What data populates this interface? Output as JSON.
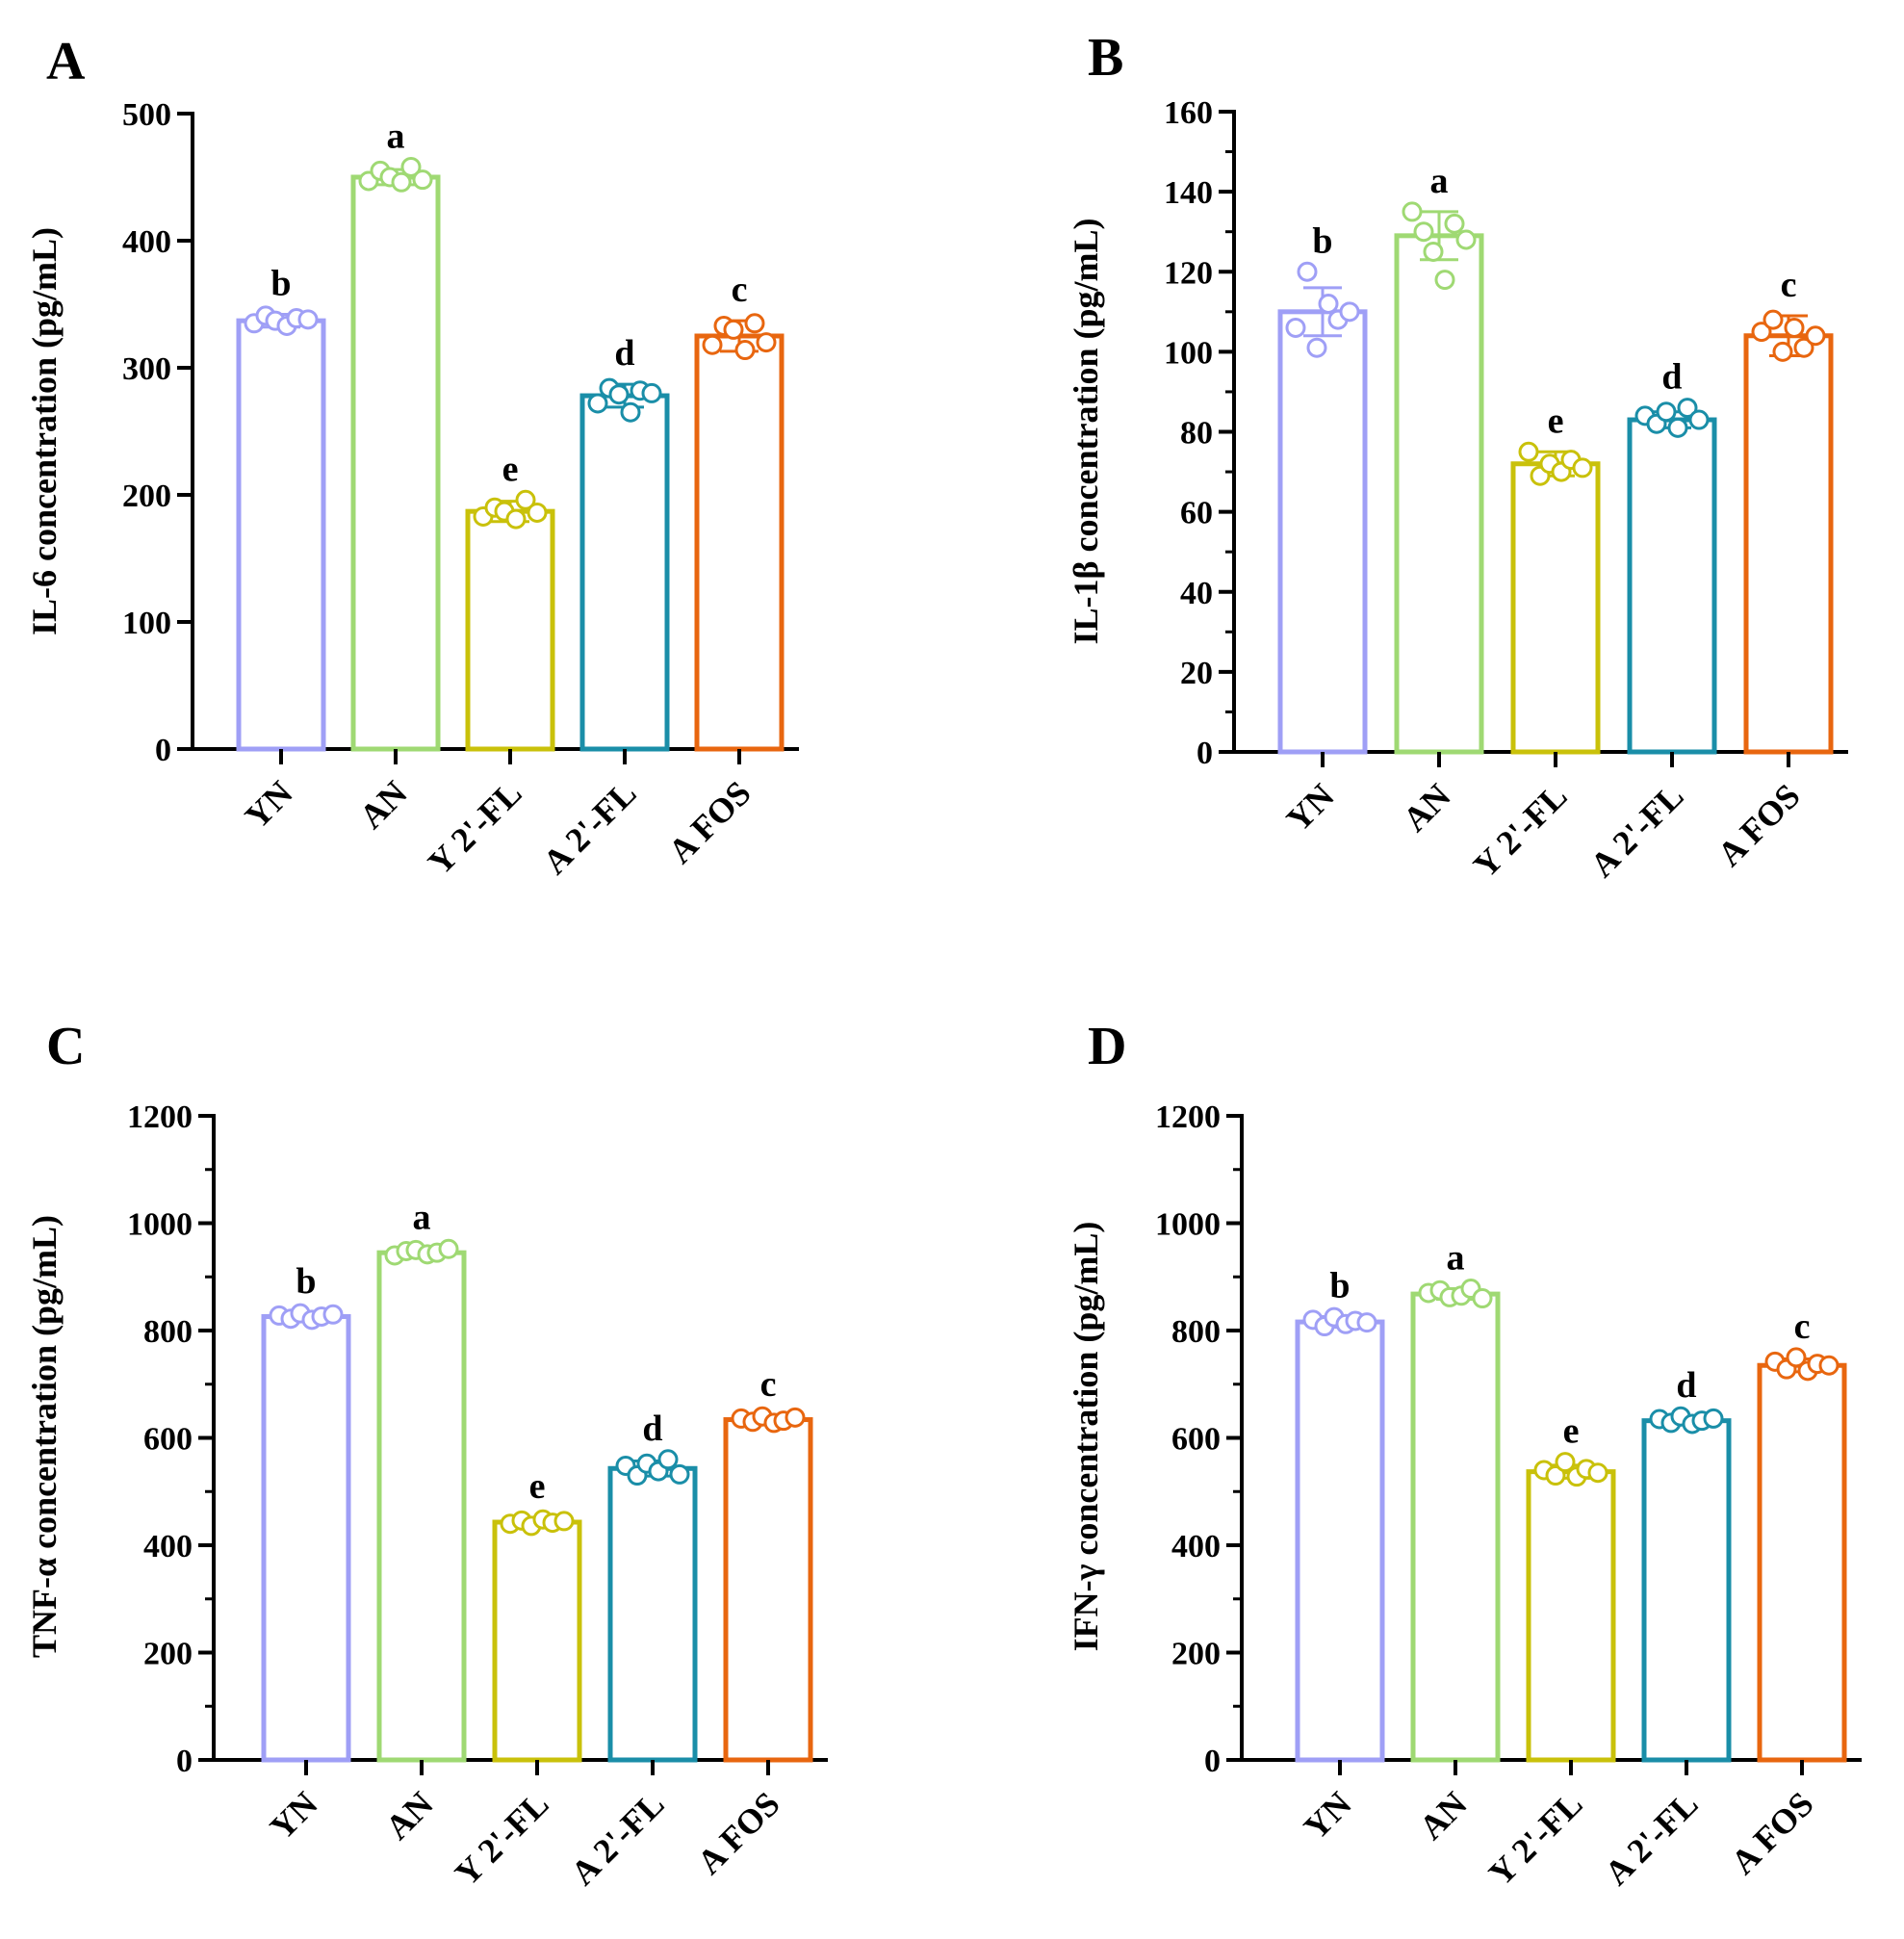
{
  "chart_data": [
    {
      "panel": "A",
      "type": "bar",
      "ylabel": "IL-6 concentration (pg/mL)",
      "ylim": [
        0,
        500
      ],
      "yticks": [
        0,
        100,
        200,
        300,
        400,
        500
      ],
      "ymajor_step": 100,
      "yminor_step": 100,
      "categories": [
        "YN",
        "AN",
        "Y 2'-FL",
        "A 2'-FL",
        "A FOS"
      ],
      "values": [
        337,
        450,
        187,
        278,
        325
      ],
      "errors": [
        5,
        6,
        8,
        9,
        12
      ],
      "letters": [
        "b",
        "a",
        "e",
        "d",
        "c"
      ],
      "points": [
        [
          335,
          341,
          337,
          333,
          339,
          338
        ],
        [
          447,
          455,
          450,
          446,
          458,
          448
        ],
        [
          183,
          190,
          187,
          181,
          196,
          186
        ],
        [
          272,
          284,
          279,
          265,
          282,
          280
        ],
        [
          318,
          333,
          330,
          314,
          335,
          320
        ]
      ]
    },
    {
      "panel": "B",
      "type": "bar",
      "ylabel": "IL-1β concentration (pg/mL)",
      "ylim": [
        0,
        160
      ],
      "yticks": [
        0,
        20,
        40,
        60,
        80,
        100,
        120,
        140,
        160
      ],
      "ymajor_step": 20,
      "yminor_step": 10,
      "categories": [
        "YN",
        "AN",
        "Y 2'-FL",
        "A 2'-FL",
        "A FOS"
      ],
      "values": [
        110,
        129,
        72,
        83,
        104
      ],
      "errors": [
        6,
        6,
        3,
        2,
        5
      ],
      "letters": [
        "b",
        "a",
        "e",
        "d",
        "c"
      ],
      "points": [
        [
          106,
          120,
          101,
          112,
          108,
          110
        ],
        [
          135,
          130,
          125,
          118,
          132,
          128
        ],
        [
          75,
          69,
          72,
          70,
          73,
          71
        ],
        [
          84,
          82,
          85,
          81,
          86,
          83
        ],
        [
          105,
          108,
          100,
          106,
          101,
          104
        ]
      ]
    },
    {
      "panel": "C",
      "type": "bar",
      "ylabel": "TNF-α concentration (pg/mL)",
      "ylim": [
        0,
        1200
      ],
      "yticks": [
        0,
        200,
        400,
        600,
        800,
        1000,
        1200
      ],
      "ymajor_step": 200,
      "yminor_step": 100,
      "categories": [
        "YN",
        "AN",
        "Y 2'-FL",
        "A 2'-FL",
        "A FOS"
      ],
      "values": [
        826,
        945,
        443,
        543,
        634
      ],
      "errors": [
        8,
        8,
        9,
        14,
        8
      ],
      "letters": [
        "b",
        "a",
        "e",
        "d",
        "c"
      ],
      "points": [
        [
          828,
          822,
          832,
          820,
          826,
          830
        ],
        [
          940,
          948,
          950,
          942,
          945,
          952
        ],
        [
          440,
          446,
          436,
          448,
          442,
          445
        ],
        [
          548,
          530,
          552,
          538,
          560,
          532
        ],
        [
          636,
          630,
          640,
          628,
          632,
          638
        ]
      ]
    },
    {
      "panel": "D",
      "type": "bar",
      "ylabel": "IFN-γ concentration (pg/mL)",
      "ylim": [
        0,
        1200
      ],
      "yticks": [
        0,
        200,
        400,
        600,
        800,
        1000,
        1200
      ],
      "ymajor_step": 200,
      "yminor_step": 100,
      "categories": [
        "YN",
        "AN",
        "Y 2'-FL",
        "A 2'-FL",
        "A FOS"
      ],
      "values": [
        816,
        868,
        537,
        632,
        735
      ],
      "errors": [
        10,
        10,
        12,
        8,
        12
      ],
      "letters": [
        "b",
        "a",
        "e",
        "d",
        "c"
      ],
      "points": [
        [
          820,
          808,
          825,
          812,
          818,
          815
        ],
        [
          870,
          875,
          862,
          865,
          878,
          860
        ],
        [
          540,
          530,
          555,
          528,
          542,
          535
        ],
        [
          635,
          628,
          640,
          626,
          632,
          636
        ],
        [
          742,
          728,
          750,
          725,
          738,
          735
        ]
      ]
    }
  ],
  "colors": [
    "#9f9ff6",
    "#9fd973",
    "#c9c10a",
    "#1a8ea8",
    "#e8660f"
  ]
}
